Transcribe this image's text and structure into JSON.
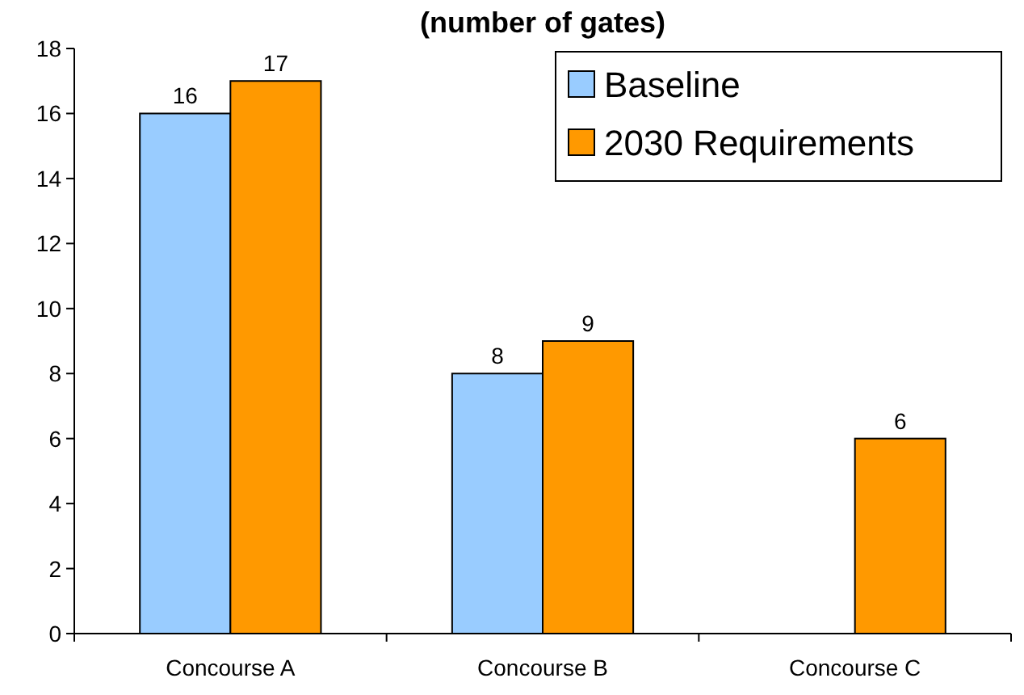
{
  "chart_data": {
    "type": "bar",
    "title": "(number of gates)",
    "categories": [
      "Concourse A",
      "Concourse B",
      "Concourse C"
    ],
    "series": [
      {
        "name": "Baseline",
        "color": "#99ccff",
        "values": [
          16,
          8,
          null
        ]
      },
      {
        "name": "2030 Requirements",
        "color": "#ff9900",
        "values": [
          17,
          9,
          6
        ]
      }
    ],
    "ylim": [
      0,
      18
    ],
    "yticks": [
      0,
      2,
      4,
      6,
      8,
      10,
      12,
      14,
      16,
      18
    ],
    "grid": false,
    "legend": "top right",
    "data_labels": true
  }
}
